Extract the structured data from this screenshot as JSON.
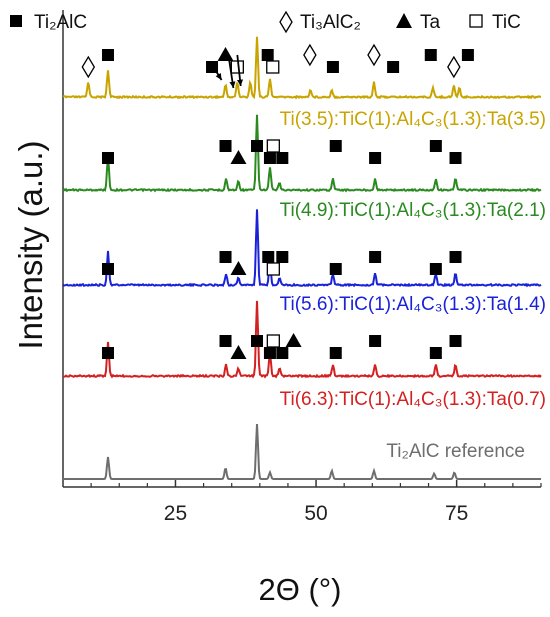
{
  "chart_data": {
    "type": "line",
    "title": "",
    "xlabel": "2Θ (°)",
    "ylabel": "Intensity (a.u.)",
    "xlim": [
      5,
      90
    ],
    "x_ticks": [
      "25",
      "50",
      "75"
    ],
    "x_tick_values": [
      25,
      50,
      75
    ],
    "grid": false,
    "legend_position": "top",
    "legend": [
      {
        "symbol": "filled-square",
        "label": "Ti₂AlC"
      },
      {
        "symbol": "open-diamond",
        "label": "Ti₃AlC₂"
      },
      {
        "symbol": "filled-triangle",
        "label": "Ta"
      },
      {
        "symbol": "open-square",
        "label": "TiC"
      }
    ],
    "series": [
      {
        "name": "Ti(3.5):TiC(1):Al₄C₃(1.3):Ta(3.5)",
        "color": "#c8a400",
        "peaks": [
          {
            "x": 9.5,
            "h": 0.25
          },
          {
            "x": 13.0,
            "h": 0.45
          },
          {
            "x": 33.9,
            "h": 0.2
          },
          {
            "x": 36.0,
            "h": 0.25
          },
          {
            "x": 38.3,
            "h": 0.25
          },
          {
            "x": 39.5,
            "h": 1.0
          },
          {
            "x": 41.8,
            "h": 0.3
          },
          {
            "x": 49.0,
            "h": 0.12
          },
          {
            "x": 52.8,
            "h": 0.12
          },
          {
            "x": 60.3,
            "h": 0.25
          },
          {
            "x": 70.8,
            "h": 0.15
          },
          {
            "x": 74.5,
            "h": 0.2
          },
          {
            "x": 75.5,
            "h": 0.15
          }
        ],
        "markers": [
          {
            "symbol": "open-diamond",
            "x": 9.5
          },
          {
            "symbol": "filled-square",
            "x": 13.0
          },
          {
            "symbol": "filled-square",
            "x": 31.5
          },
          {
            "symbol": "filled-triangle",
            "x": 33.9
          },
          {
            "symbol": "open-square",
            "x": 36.0
          },
          {
            "symbol": "filled-square",
            "x": 41.4
          },
          {
            "symbol": "open-square",
            "x": 42.3
          },
          {
            "symbol": "open-diamond",
            "x": 48.9
          },
          {
            "symbol": "filled-square",
            "x": 53.0
          },
          {
            "symbol": "open-diamond",
            "x": 60.3
          },
          {
            "symbol": "filled-square",
            "x": 63.7
          },
          {
            "symbol": "filled-square",
            "x": 70.4
          },
          {
            "symbol": "open-diamond",
            "x": 74.5
          },
          {
            "symbol": "filled-square",
            "x": 77.0
          }
        ]
      },
      {
        "name": "Ti(4.9):TiC(1):Al₄C₃(1.3):Ta(2.1)",
        "color": "#2a8a20",
        "peaks": [
          {
            "x": 13.0,
            "h": 0.45
          },
          {
            "x": 34.0,
            "h": 0.15
          },
          {
            "x": 36.2,
            "h": 0.12
          },
          {
            "x": 39.5,
            "h": 1.0
          },
          {
            "x": 41.8,
            "h": 0.3
          },
          {
            "x": 43.5,
            "h": 0.1
          },
          {
            "x": 53.0,
            "h": 0.15
          },
          {
            "x": 60.5,
            "h": 0.15
          },
          {
            "x": 71.3,
            "h": 0.15
          },
          {
            "x": 74.8,
            "h": 0.15
          }
        ],
        "markers": [
          {
            "symbol": "filled-square",
            "x": 13.0
          },
          {
            "symbol": "filled-square",
            "x": 33.9
          },
          {
            "symbol": "filled-triangle",
            "x": 36.2
          },
          {
            "symbol": "filled-square",
            "x": 39.5
          },
          {
            "symbol": "filled-square",
            "x": 41.8
          },
          {
            "symbol": "open-square",
            "x": 42.4
          },
          {
            "symbol": "filled-square",
            "x": 44.0
          },
          {
            "symbol": "filled-square",
            "x": 53.5
          },
          {
            "symbol": "filled-square",
            "x": 60.5
          },
          {
            "symbol": "filled-square",
            "x": 71.3
          },
          {
            "symbol": "filled-square",
            "x": 74.8
          }
        ]
      },
      {
        "name": "Ti(5.6):TiC(1):Al₄C₃(1.3):Ta(1.4)",
        "color": "#1a22d8",
        "peaks": [
          {
            "x": 13.0,
            "h": 0.45
          },
          {
            "x": 34.0,
            "h": 0.15
          },
          {
            "x": 36.2,
            "h": 0.1
          },
          {
            "x": 39.5,
            "h": 1.0
          },
          {
            "x": 41.8,
            "h": 0.3
          },
          {
            "x": 43.5,
            "h": 0.1
          },
          {
            "x": 53.0,
            "h": 0.15
          },
          {
            "x": 60.5,
            "h": 0.15
          },
          {
            "x": 71.3,
            "h": 0.15
          },
          {
            "x": 74.8,
            "h": 0.15
          }
        ],
        "markers": [
          {
            "symbol": "filled-square",
            "x": 13.0
          },
          {
            "symbol": "filled-square",
            "x": 33.9
          },
          {
            "symbol": "filled-triangle",
            "x": 36.2
          },
          {
            "symbol": "filled-square",
            "x": 41.5
          },
          {
            "symbol": "open-square",
            "x": 42.4
          },
          {
            "symbol": "filled-square",
            "x": 44.0
          },
          {
            "symbol": "filled-square",
            "x": 53.5
          },
          {
            "symbol": "filled-square",
            "x": 60.5
          },
          {
            "symbol": "filled-square",
            "x": 71.3
          },
          {
            "symbol": "filled-square",
            "x": 74.8
          }
        ]
      },
      {
        "name": "Ti(6.3):TiC(1):Al₄C₃(1.3):Ta(0.7)",
        "color": "#d42020",
        "peaks": [
          {
            "x": 13.0,
            "h": 0.45
          },
          {
            "x": 34.0,
            "h": 0.15
          },
          {
            "x": 36.2,
            "h": 0.1
          },
          {
            "x": 39.5,
            "h": 1.0
          },
          {
            "x": 41.8,
            "h": 0.3
          },
          {
            "x": 43.5,
            "h": 0.1
          },
          {
            "x": 53.0,
            "h": 0.15
          },
          {
            "x": 60.5,
            "h": 0.15
          },
          {
            "x": 71.3,
            "h": 0.15
          },
          {
            "x": 74.8,
            "h": 0.15
          }
        ],
        "markers": [
          {
            "symbol": "filled-square",
            "x": 13.0
          },
          {
            "symbol": "filled-square",
            "x": 33.9
          },
          {
            "symbol": "filled-triangle",
            "x": 36.2
          },
          {
            "symbol": "filled-square",
            "x": 39.5
          },
          {
            "symbol": "filled-square",
            "x": 41.8
          },
          {
            "symbol": "open-square",
            "x": 42.4
          },
          {
            "symbol": "filled-square",
            "x": 44.0
          },
          {
            "symbol": "filled-triangle",
            "x": 46.0
          },
          {
            "symbol": "filled-square",
            "x": 53.5
          },
          {
            "symbol": "filled-square",
            "x": 60.5
          },
          {
            "symbol": "filled-square",
            "x": 71.3
          },
          {
            "symbol": "filled-square",
            "x": 74.8
          }
        ]
      },
      {
        "name": "Ti₂AlC reference",
        "color": "#6e6e6e",
        "peaks": [
          {
            "x": 13.0,
            "h": 0.4
          },
          {
            "x": 33.9,
            "h": 0.2
          },
          {
            "x": 39.5,
            "h": 1.0
          },
          {
            "x": 41.8,
            "h": 0.12
          },
          {
            "x": 52.8,
            "h": 0.15
          },
          {
            "x": 60.3,
            "h": 0.15
          },
          {
            "x": 71.0,
            "h": 0.1
          },
          {
            "x": 74.6,
            "h": 0.12
          }
        ],
        "markers": []
      }
    ]
  }
}
